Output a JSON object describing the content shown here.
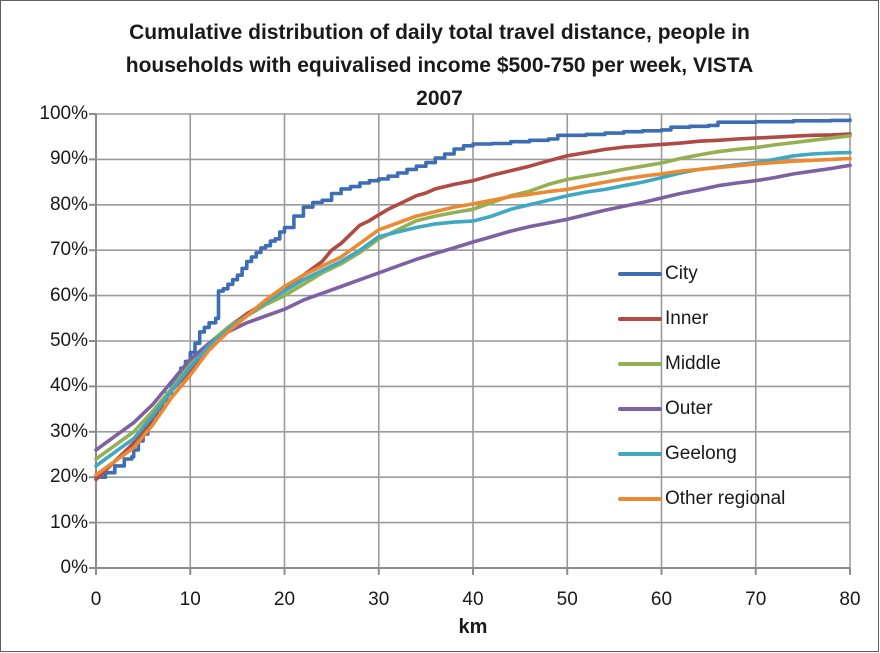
{
  "window": {
    "background": "#ffffff",
    "border_color": "#5f5f5f"
  },
  "chart_data": {
    "type": "line",
    "title": "Cumulative distribution of daily total travel distance, people in households with equivalised income $500-750 per week, VISTA 2007",
    "title_lines": [
      "Cumulative distribution of daily total travel distance, people in",
      "households with equivalised income $500-750 per week, VISTA",
      "2007"
    ],
    "xlabel": "km",
    "ylabel": "",
    "xlim": [
      0,
      80
    ],
    "ylim": [
      0,
      100
    ],
    "x_ticks": [
      0,
      10,
      20,
      30,
      40,
      50,
      60,
      70,
      80
    ],
    "y_ticks": [
      0,
      10,
      20,
      30,
      40,
      50,
      60,
      70,
      80,
      90,
      100
    ],
    "y_tick_format": "percent",
    "grid": true,
    "grid_color": "#9b9b9b",
    "axis_color": "#8c8c8c",
    "text_color": "#1a1a1a",
    "legend_position": "inside-right",
    "series": [
      {
        "name": "City",
        "color": "#3d6eb4",
        "style": "step",
        "points": [
          [
            0,
            20
          ],
          [
            1,
            21
          ],
          [
            2,
            22.5
          ],
          [
            3,
            24
          ],
          [
            3.8,
            24.5
          ],
          [
            4,
            26
          ],
          [
            4.5,
            28
          ],
          [
            5,
            29.5
          ],
          [
            5.5,
            31.5
          ],
          [
            6,
            33.5
          ],
          [
            6.5,
            35
          ],
          [
            7,
            37
          ],
          [
            7.5,
            38.5
          ],
          [
            8,
            41
          ],
          [
            8.5,
            42
          ],
          [
            9,
            44
          ],
          [
            9.5,
            45.5
          ],
          [
            10,
            47.5
          ],
          [
            10.5,
            49.5
          ],
          [
            11,
            52
          ],
          [
            11.5,
            53
          ],
          [
            12,
            54
          ],
          [
            12.7,
            55
          ],
          [
            13,
            61
          ],
          [
            13.5,
            61.5
          ],
          [
            14,
            62.5
          ],
          [
            14.5,
            63.5
          ],
          [
            15,
            64.5
          ],
          [
            15.5,
            66
          ],
          [
            16,
            67.5
          ],
          [
            16.5,
            68.5
          ],
          [
            17,
            69.5
          ],
          [
            17.5,
            70.5
          ],
          [
            18,
            71
          ],
          [
            18.5,
            72
          ],
          [
            19,
            72.5
          ],
          [
            19.5,
            74
          ],
          [
            20,
            75
          ],
          [
            21,
            77.5
          ],
          [
            22,
            79.5
          ],
          [
            23,
            80.5
          ],
          [
            24,
            81
          ],
          [
            25,
            82.5
          ],
          [
            26,
            83.5
          ],
          [
            27,
            84
          ],
          [
            28,
            84.8
          ],
          [
            29,
            85.3
          ],
          [
            30,
            85.7
          ],
          [
            31,
            86.3
          ],
          [
            32,
            87
          ],
          [
            33,
            87.8
          ],
          [
            34,
            88.5
          ],
          [
            35,
            89.3
          ],
          [
            36,
            90.3
          ],
          [
            37,
            91.2
          ],
          [
            38,
            92.3
          ],
          [
            39,
            93
          ],
          [
            40,
            93.4
          ],
          [
            42,
            93.5
          ],
          [
            44,
            93.9
          ],
          [
            46,
            94.2
          ],
          [
            48,
            94.5
          ],
          [
            49,
            95.3
          ],
          [
            52,
            95.5
          ],
          [
            54,
            95.8
          ],
          [
            56,
            96.1
          ],
          [
            58,
            96.3
          ],
          [
            60,
            96.5
          ],
          [
            61,
            97.1
          ],
          [
            63,
            97.3
          ],
          [
            65,
            97.5
          ],
          [
            66,
            98.2
          ],
          [
            70,
            98.3
          ],
          [
            74,
            98.5
          ],
          [
            78,
            98.6
          ],
          [
            80,
            98.7
          ]
        ]
      },
      {
        "name": "Inner",
        "color": "#b04a45",
        "style": "line",
        "points": [
          [
            0,
            19.5
          ],
          [
            2,
            23.5
          ],
          [
            4,
            27.5
          ],
          [
            6,
            33
          ],
          [
            8,
            39
          ],
          [
            10,
            43.5
          ],
          [
            12,
            49
          ],
          [
            14,
            53
          ],
          [
            16,
            56
          ],
          [
            18,
            58.5
          ],
          [
            20,
            61.5
          ],
          [
            22,
            64.5
          ],
          [
            24,
            67.5
          ],
          [
            25,
            70
          ],
          [
            26,
            71.5
          ],
          [
            27,
            73.5
          ],
          [
            28,
            75.5
          ],
          [
            29,
            76.5
          ],
          [
            30,
            77.8
          ],
          [
            31,
            79
          ],
          [
            32,
            80
          ],
          [
            33,
            81
          ],
          [
            34,
            82
          ],
          [
            35,
            82.6
          ],
          [
            36,
            83.5
          ],
          [
            38,
            84.5
          ],
          [
            40,
            85.3
          ],
          [
            42,
            86.5
          ],
          [
            44,
            87.5
          ],
          [
            46,
            88.5
          ],
          [
            48,
            89.7
          ],
          [
            50,
            90.8
          ],
          [
            52,
            91.5
          ],
          [
            54,
            92.2
          ],
          [
            56,
            92.7
          ],
          [
            58,
            93
          ],
          [
            60,
            93.3
          ],
          [
            62,
            93.6
          ],
          [
            64,
            94
          ],
          [
            66,
            94.2
          ],
          [
            68,
            94.5
          ],
          [
            70,
            94.7
          ],
          [
            72,
            94.9
          ],
          [
            74,
            95.1
          ],
          [
            76,
            95.3
          ],
          [
            78,
            95.4
          ],
          [
            80,
            95.6
          ]
        ]
      },
      {
        "name": "Middle",
        "color": "#94b052",
        "style": "line",
        "points": [
          [
            0,
            24
          ],
          [
            2,
            27
          ],
          [
            4,
            30
          ],
          [
            6,
            34.5
          ],
          [
            8,
            39.5
          ],
          [
            10,
            45
          ],
          [
            12,
            49.5
          ],
          [
            14,
            53
          ],
          [
            16,
            55.5
          ],
          [
            18,
            58
          ],
          [
            20,
            60
          ],
          [
            22,
            62.5
          ],
          [
            24,
            65
          ],
          [
            26,
            67
          ],
          [
            28,
            69.5
          ],
          [
            30,
            72.5
          ],
          [
            32,
            74.5
          ],
          [
            34,
            76.5
          ],
          [
            36,
            77.5
          ],
          [
            38,
            78.3
          ],
          [
            40,
            79
          ],
          [
            42,
            80.5
          ],
          [
            44,
            82
          ],
          [
            46,
            83
          ],
          [
            48,
            84.5
          ],
          [
            50,
            85.6
          ],
          [
            52,
            86.3
          ],
          [
            54,
            87
          ],
          [
            56,
            87.8
          ],
          [
            58,
            88.5
          ],
          [
            60,
            89.2
          ],
          [
            62,
            90.2
          ],
          [
            64,
            91
          ],
          [
            66,
            91.7
          ],
          [
            68,
            92.2
          ],
          [
            70,
            92.6
          ],
          [
            72,
            93.2
          ],
          [
            74,
            93.7
          ],
          [
            76,
            94.2
          ],
          [
            78,
            94.7
          ],
          [
            80,
            95.2
          ]
        ]
      },
      {
        "name": "Outer",
        "color": "#7d61a3",
        "style": "line",
        "points": [
          [
            0,
            26
          ],
          [
            2,
            29
          ],
          [
            4,
            32
          ],
          [
            6,
            36
          ],
          [
            8,
            41
          ],
          [
            10,
            46
          ],
          [
            12,
            49.5
          ],
          [
            14,
            52
          ],
          [
            16,
            54
          ],
          [
            18,
            55.5
          ],
          [
            20,
            57
          ],
          [
            22,
            59
          ],
          [
            24,
            60.5
          ],
          [
            26,
            62
          ],
          [
            28,
            63.5
          ],
          [
            30,
            65
          ],
          [
            32,
            66.5
          ],
          [
            34,
            68
          ],
          [
            36,
            69.3
          ],
          [
            38,
            70.5
          ],
          [
            40,
            71.8
          ],
          [
            42,
            73
          ],
          [
            44,
            74.2
          ],
          [
            46,
            75.2
          ],
          [
            48,
            76
          ],
          [
            50,
            76.8
          ],
          [
            52,
            77.8
          ],
          [
            54,
            78.8
          ],
          [
            56,
            79.7
          ],
          [
            58,
            80.5
          ],
          [
            60,
            81.5
          ],
          [
            62,
            82.5
          ],
          [
            64,
            83.3
          ],
          [
            66,
            84.2
          ],
          [
            68,
            84.8
          ],
          [
            70,
            85.3
          ],
          [
            72,
            86
          ],
          [
            74,
            86.8
          ],
          [
            76,
            87.4
          ],
          [
            78,
            88
          ],
          [
            80,
            88.7
          ]
        ]
      },
      {
        "name": "Geelong",
        "color": "#3fa8c3",
        "style": "line",
        "points": [
          [
            0,
            22.5
          ],
          [
            2,
            25.5
          ],
          [
            4,
            28.5
          ],
          [
            6,
            33.5
          ],
          [
            8,
            39
          ],
          [
            10,
            44.3
          ],
          [
            12,
            49
          ],
          [
            14,
            52.5
          ],
          [
            16,
            55.5
          ],
          [
            18,
            58.5
          ],
          [
            20,
            61
          ],
          [
            22,
            63.5
          ],
          [
            24,
            65.5
          ],
          [
            26,
            67.5
          ],
          [
            28,
            70
          ],
          [
            30,
            73
          ],
          [
            32,
            74
          ],
          [
            34,
            75
          ],
          [
            36,
            75.8
          ],
          [
            38,
            76.2
          ],
          [
            40,
            76.4
          ],
          [
            42,
            77.5
          ],
          [
            44,
            79
          ],
          [
            46,
            80
          ],
          [
            48,
            81
          ],
          [
            50,
            82
          ],
          [
            52,
            82.8
          ],
          [
            54,
            83.4
          ],
          [
            56,
            84.2
          ],
          [
            58,
            85
          ],
          [
            60,
            86
          ],
          [
            62,
            87
          ],
          [
            64,
            87.8
          ],
          [
            66,
            88.3
          ],
          [
            68,
            88.8
          ],
          [
            70,
            89.3
          ],
          [
            72,
            90
          ],
          [
            74,
            90.8
          ],
          [
            76,
            91.2
          ],
          [
            78,
            91.4
          ],
          [
            80,
            91.5
          ]
        ]
      },
      {
        "name": "Other regional",
        "color": "#eb8a33",
        "style": "line",
        "points": [
          [
            0,
            20.5
          ],
          [
            2,
            23.5
          ],
          [
            4,
            26.5
          ],
          [
            6,
            31.5
          ],
          [
            8,
            37.5
          ],
          [
            10,
            42.5
          ],
          [
            12,
            48
          ],
          [
            14,
            52
          ],
          [
            16,
            55.5
          ],
          [
            18,
            59
          ],
          [
            20,
            62
          ],
          [
            22,
            64.5
          ],
          [
            24,
            66.5
          ],
          [
            26,
            68.5
          ],
          [
            28,
            71.5
          ],
          [
            30,
            74.5
          ],
          [
            32,
            76
          ],
          [
            34,
            77.5
          ],
          [
            36,
            78.5
          ],
          [
            38,
            79.5
          ],
          [
            40,
            80.2
          ],
          [
            42,
            81
          ],
          [
            44,
            81.8
          ],
          [
            46,
            82.3
          ],
          [
            48,
            82.9
          ],
          [
            50,
            83.4
          ],
          [
            52,
            84.2
          ],
          [
            54,
            85
          ],
          [
            56,
            85.7
          ],
          [
            58,
            86.3
          ],
          [
            60,
            86.8
          ],
          [
            62,
            87.4
          ],
          [
            64,
            87.8
          ],
          [
            66,
            88.2
          ],
          [
            68,
            88.6
          ],
          [
            70,
            89
          ],
          [
            72,
            89.3
          ],
          [
            74,
            89.6
          ],
          [
            76,
            89.8
          ],
          [
            78,
            90
          ],
          [
            80,
            90.2
          ]
        ]
      }
    ]
  }
}
